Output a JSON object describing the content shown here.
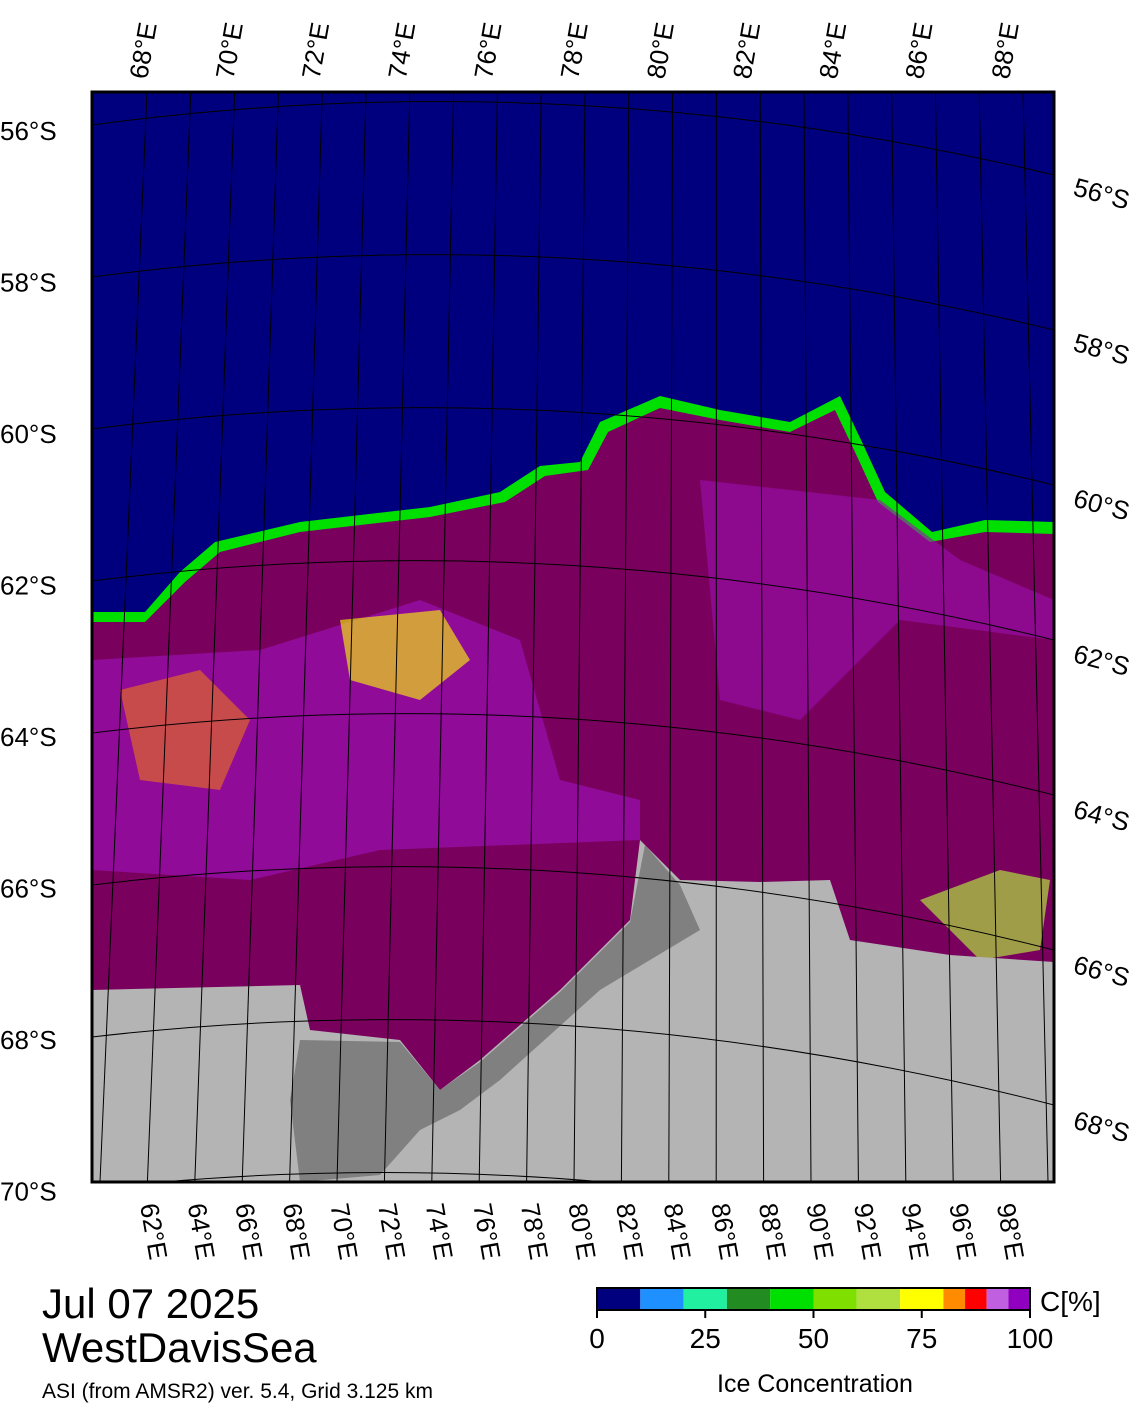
{
  "map": {
    "top_lon_labels": [
      "68°E",
      "70°E",
      "72°E",
      "74°E",
      "76°E",
      "78°E",
      "80°E",
      "82°E",
      "84°E",
      "86°E",
      "88°E"
    ],
    "left_lat_labels": [
      "56°S",
      "58°S",
      "60°S",
      "62°S",
      "64°S",
      "66°S",
      "68°S",
      "70°S"
    ],
    "right_lat_labels": [
      "56°S",
      "58°S",
      "60°S",
      "62°S",
      "64°S",
      "66°S",
      "68°S"
    ],
    "bottom_lon_labels": [
      "62°E",
      "64°E",
      "66°E",
      "68°E",
      "70°E",
      "72°E",
      "74°E",
      "76°E",
      "78°E",
      "80°E",
      "82°E",
      "84°E",
      "86°E",
      "88°E",
      "90°E",
      "92°E",
      "94°E",
      "96°E",
      "98°E"
    ]
  },
  "caption": {
    "date": "Jul 07 2025",
    "region": "WestDavisSea",
    "source": "ASI (from AMSR2) ver. 5.4,  Grid 3.125 km"
  },
  "colorbar": {
    "unit": "C[%]",
    "label": "Ice Concentration",
    "lim": [
      0,
      100
    ],
    "ticks": [
      0,
      25,
      50,
      75,
      100
    ],
    "bounds": [
      0,
      10,
      20,
      30,
      40,
      50,
      60,
      70,
      80,
      85,
      90,
      95,
      100
    ],
    "colors": [
      "#00007f",
      "#1e90ff",
      "#20f0a0",
      "#228b22",
      "#00e000",
      "#7fe000",
      "#b0e040",
      "#ffff00",
      "#ff8c00",
      "#ff0000",
      "#c060e0",
      "#9000c0"
    ]
  }
}
